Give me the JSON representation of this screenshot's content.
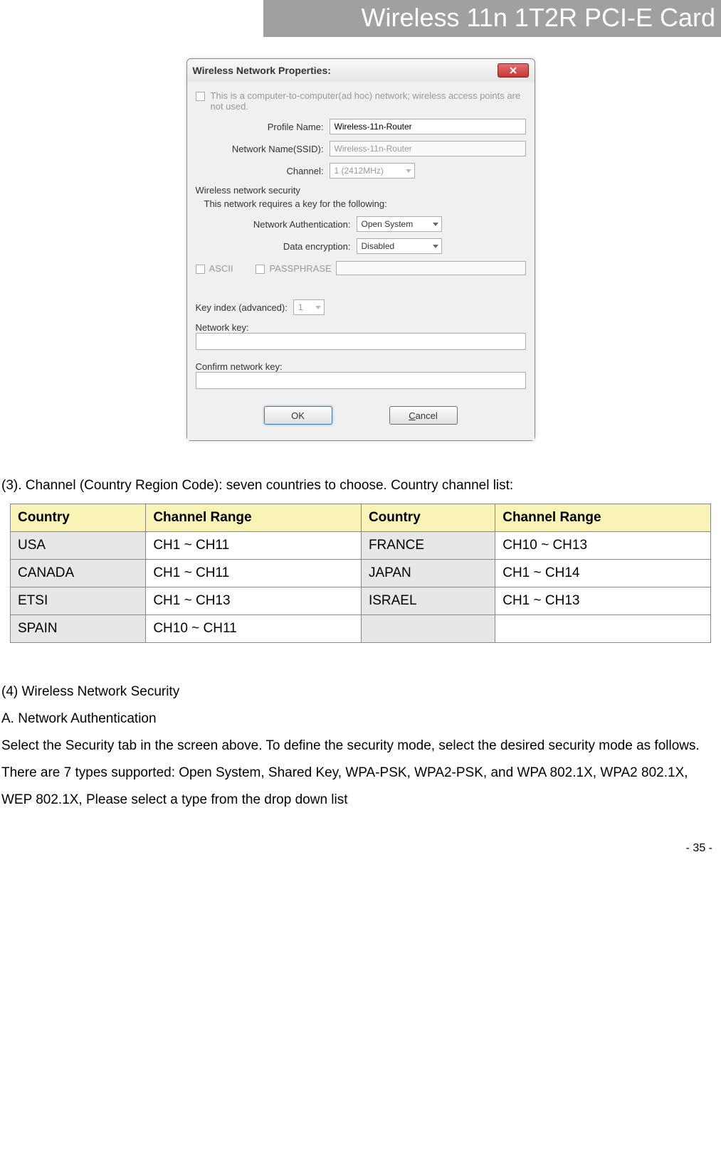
{
  "header": {
    "title": "Wireless 11n 1T2R PCI-E Card"
  },
  "dialog": {
    "title": "Wireless Network Properties:",
    "adhoc_text": "This is a computer-to-computer(ad hoc) network; wireless access points are not used.",
    "profile_label": "Profile Name:",
    "profile_value": "Wireless-11n-Router",
    "ssid_label": "Network Name(SSID):",
    "ssid_value": "Wireless-11n-Router",
    "channel_label": "Channel:",
    "channel_value": "1 (2412MHz)",
    "security_section": "Wireless network security",
    "security_sub": "This network requires a key for the following:",
    "auth_label": "Network Authentication:",
    "auth_value": "Open System",
    "enc_label": "Data encryption:",
    "enc_value": "Disabled",
    "ascii_label": "ASCII",
    "passphrase_label": "PASSPHRASE",
    "keyindex_label": "Key index (advanced):",
    "keyindex_value": "1",
    "netkey_label": "Network key:",
    "confirm_label": "Confirm network key:",
    "ok_label": "OK",
    "cancel_label": "Cancel"
  },
  "section3": {
    "intro": "(3). Channel (Country Region Code): seven countries to choose. Country channel list:",
    "headers": [
      "Country",
      "Channel Range",
      "Country",
      "Channel Range"
    ],
    "rows": [
      [
        "USA",
        "CH1 ~ CH11",
        "FRANCE",
        "CH10 ~ CH13"
      ],
      [
        "CANADA",
        "CH1 ~ CH11",
        "JAPAN",
        "CH1 ~ CH14"
      ],
      [
        "ETSI",
        "CH1 ~ CH13",
        "ISRAEL",
        "CH1 ~ CH13"
      ],
      [
        "SPAIN",
        "CH10 ~ CH11",
        "",
        ""
      ]
    ],
    "header_bg": "#f9f4b5",
    "cname_bg": "#e7e7e7"
  },
  "section4": {
    "heading": "(4) Wireless Network Security",
    "sub": "A. Network Authentication",
    "body": "Select the Security tab in the screen above. To define the security mode, select the desired security mode as follows. There are 7 types supported: Open System, Shared Key, WPA-PSK, WPA2-PSK, and WPA 802.1X, WPA2 802.1X, WEP 802.1X, Please select a type from the drop down list"
  },
  "footer": {
    "page": "- 35 -"
  },
  "colors": {
    "header_bg": "#a0a0a0",
    "header_text": "#ffffff",
    "close_bg_top": "#e26f6f",
    "close_bg_bot": "#c93434"
  }
}
